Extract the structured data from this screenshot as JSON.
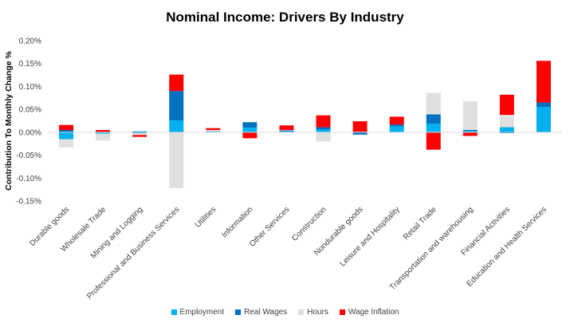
{
  "chart_data": {
    "type": "bar",
    "stacked": true,
    "title": "Nominal Income: Drivers By Industry",
    "ylabel": "Contribution To Monthly Change %",
    "xlabel": "",
    "ylim": [
      -0.15,
      0.2
    ],
    "y_ticks": [
      -0.15,
      -0.1,
      -0.05,
      0.0,
      0.05,
      0.1,
      0.15,
      0.2
    ],
    "y_tick_labels": [
      "-0.15%",
      "-0.10%",
      "-0.05%",
      "0.00%",
      "0.05%",
      "0.10%",
      "0.15%",
      "0.20%"
    ],
    "grid": false,
    "legend_position": "bottom",
    "categories": [
      "Durable goods",
      "Wholesale Trade",
      "Mining and Logging",
      "Professional and Business Services",
      "Utilities",
      "Information",
      "Other Services",
      "Construction",
      "Nondurable goods",
      "Leisure and Hospitality",
      "Retail Trade",
      "Transportation and warehousing",
      "Financial Activities",
      "Education and Health Services"
    ],
    "series": [
      {
        "name": "Employment",
        "color": "#00B0F0",
        "values": [
          -0.015,
          -0.003,
          -0.002,
          0.026,
          0.001,
          0.01,
          0.002,
          0.006,
          0.001,
          0.013,
          0.019,
          0.003,
          0.011,
          0.055
        ]
      },
      {
        "name": "Real Wages",
        "color": "#0070C0",
        "values": [
          0.005,
          0.001,
          0.002,
          0.064,
          0.001,
          0.012,
          0.002,
          0.005,
          -0.005,
          0.004,
          0.02,
          0.002,
          -0.002,
          0.01
        ]
      },
      {
        "name": "Hours",
        "color": "#E0E0E0",
        "values": [
          -0.018,
          -0.015,
          -0.004,
          -0.122,
          0.003,
          0.0,
          0.001,
          -0.02,
          0.0,
          0.0,
          0.047,
          0.063,
          0.027,
          0.0
        ]
      },
      {
        "name": "Wage Inflation",
        "color": "#FF0000",
        "values": [
          0.011,
          0.004,
          -0.004,
          0.036,
          0.004,
          -0.013,
          0.01,
          0.026,
          0.023,
          0.017,
          -0.038,
          -0.008,
          0.044,
          0.091
        ]
      }
    ]
  }
}
